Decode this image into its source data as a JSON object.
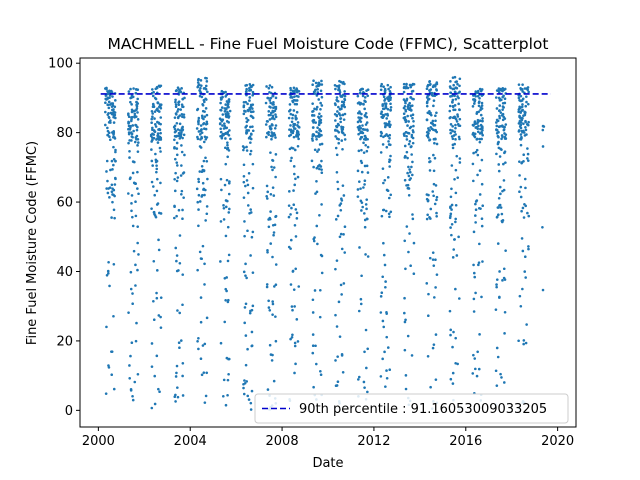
{
  "chart_data": {
    "type": "scatter",
    "title": "MACHMELL - Fine Fuel Moisture Code (FFMC), Scatterplot",
    "xlabel": "Date",
    "ylabel": "Fine Fuel Moisture Code (FFMC)",
    "xlim": [
      1999.2,
      2020.8
    ],
    "ylim": [
      -4.8,
      101.5
    ],
    "x_ticks": [
      2000,
      2004,
      2008,
      2012,
      2016,
      2020
    ],
    "y_ticks": [
      0,
      20,
      40,
      60,
      80,
      100
    ],
    "grid": false,
    "legend_position": "lower-right",
    "point_color": "#1f77b4",
    "reference_line": {
      "label": "90th percentile : 91.16053009033205",
      "value": 91.16053009033205,
      "x_range": [
        2000.1,
        2019.7
      ],
      "color": "#0000cd",
      "style": "dashed"
    },
    "seasons": [
      {
        "start": 2000.3,
        "end": 2000.75,
        "max": 93
      },
      {
        "start": 2001.3,
        "end": 2001.75,
        "max": 93
      },
      {
        "start": 2002.3,
        "end": 2002.75,
        "max": 94
      },
      {
        "start": 2003.3,
        "end": 2003.75,
        "max": 93
      },
      {
        "start": 2004.3,
        "end": 2004.75,
        "max": 96
      },
      {
        "start": 2005.3,
        "end": 2005.75,
        "max": 92
      },
      {
        "start": 2006.3,
        "end": 2006.75,
        "max": 94
      },
      {
        "start": 2007.3,
        "end": 2007.75,
        "max": 94
      },
      {
        "start": 2008.3,
        "end": 2008.75,
        "max": 93
      },
      {
        "start": 2009.3,
        "end": 2009.75,
        "max": 95
      },
      {
        "start": 2010.3,
        "end": 2010.75,
        "max": 95
      },
      {
        "start": 2011.3,
        "end": 2011.75,
        "max": 93
      },
      {
        "start": 2012.3,
        "end": 2012.75,
        "max": 94
      },
      {
        "start": 2013.3,
        "end": 2013.75,
        "max": 94
      },
      {
        "start": 2014.3,
        "end": 2014.75,
        "max": 95
      },
      {
        "start": 2015.3,
        "end": 2015.75,
        "max": 96
      },
      {
        "start": 2016.3,
        "end": 2016.75,
        "max": 93
      },
      {
        "start": 2017.3,
        "end": 2017.75,
        "max": 93
      },
      {
        "start": 2018.3,
        "end": 2018.75,
        "max": 94
      },
      {
        "start": 2019.3,
        "end": 2019.4,
        "max": 92
      }
    ]
  }
}
